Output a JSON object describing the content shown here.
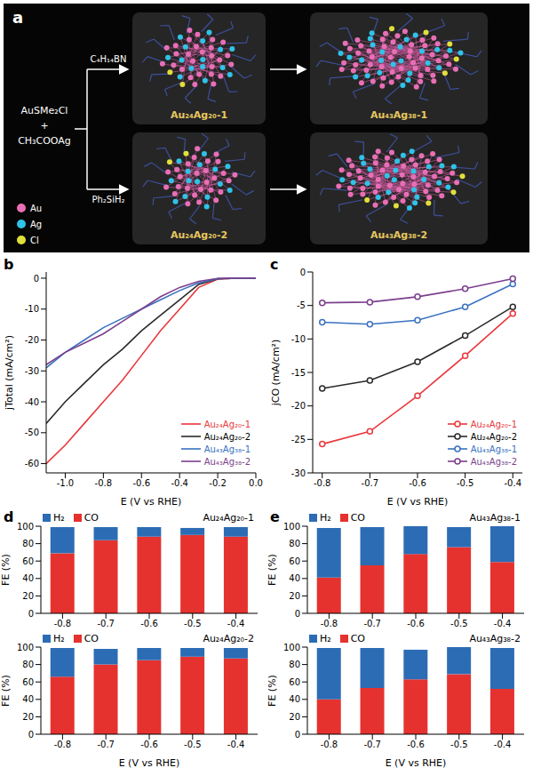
{
  "panel_a": {
    "label": "a",
    "reactants": [
      "AuSMe₂Cl",
      "+",
      "CH₃COOAg"
    ],
    "reagents": [
      "C₄H₁₄BN",
      "Ph₂SiH₂"
    ],
    "products": [
      [
        "Au₂₄Ag₂₀-1",
        "Au₄₃Ag₃₈-1"
      ],
      [
        "Au₂₄Ag₂₀-2",
        "Au₄₃Ag₃₈-2"
      ]
    ],
    "atoms": [
      {
        "label": "Au",
        "color": "#e86fb5"
      },
      {
        "label": "Ag",
        "color": "#2fc3e8"
      },
      {
        "label": "Cl",
        "color": "#e0e03a"
      }
    ]
  },
  "chart_data": [
    {
      "panel": "b",
      "type": "line",
      "x_label": "E (V vs RHE)",
      "y_label": "jTotal (mA/cm²)",
      "x": [
        -1.1,
        -1,
        -0.9,
        -0.8,
        -0.7,
        -0.6,
        -0.5,
        -0.4,
        -0.3,
        -0.2,
        -0.1,
        0
      ],
      "series": [
        {
          "name": "Au₂₄Ag₂₀-1",
          "color": "#e8383d",
          "values": [
            -60,
            -54,
            -47,
            -40,
            -33,
            -25,
            -17,
            -10,
            -3,
            -0.3,
            0,
            0
          ]
        },
        {
          "name": "Au₂₄Ag₂₀-2",
          "color": "#2b2b2b",
          "values": [
            -47,
            -40,
            -34,
            -28,
            -23,
            -17,
            -12,
            -7,
            -2,
            -0.2,
            0,
            0
          ]
        },
        {
          "name": "Au₄₃Ag₃₈-1",
          "color": "#3a72c0",
          "values": [
            -29,
            -24,
            -20,
            -16,
            -13,
            -10,
            -7,
            -4,
            -1.5,
            -0.2,
            0,
            0
          ]
        },
        {
          "name": "Au₄₃Ag₃₈-2",
          "color": "#7b3f8c",
          "values": [
            -28,
            -24,
            -21,
            -18,
            -14,
            -10,
            -6,
            -3,
            -1,
            -0.1,
            0,
            0
          ]
        }
      ],
      "xlim": [
        -1.1,
        0
      ],
      "xticks": [
        {
          "value": -1,
          "label": "-1.0"
        },
        -0.8,
        -0.6,
        -0.4,
        -0.2,
        {
          "value": 0,
          "label": "0.0"
        }
      ],
      "ylim": [
        -63,
        2
      ],
      "yticks": [
        -60,
        -50,
        -40,
        -30,
        -20,
        -10,
        0
      ],
      "legend": "lower right",
      "grid": false
    },
    {
      "panel": "c",
      "type": "line",
      "marker": "circle",
      "x_label": "E (V vs RHE)",
      "y_label": "jCO (mA/cm²)",
      "x": [
        -0.8,
        -0.7,
        -0.6,
        -0.5,
        -0.4
      ],
      "series": [
        {
          "name": "Au₂₄Ag₂₀-1",
          "color": "#e8383d",
          "values": [
            -25.7,
            -23.8,
            -18.5,
            -12.5,
            -6.2
          ]
        },
        {
          "name": "Au₂₄Ag₂₀-2",
          "color": "#2b2b2b",
          "values": [
            -17.4,
            -16.2,
            -13.4,
            -9.5,
            -5.2
          ]
        },
        {
          "name": "Au₄₃Ag₃₈-1",
          "color": "#3a72c0",
          "values": [
            -7.5,
            -7.8,
            -7.2,
            -5.2,
            -1.8
          ]
        },
        {
          "name": "Au₄₃Ag₃₈-2",
          "color": "#7b3f8c",
          "values": [
            -4.6,
            -4.5,
            -3.7,
            -2.5,
            -1
          ]
        }
      ],
      "xlim": [
        -0.82,
        -0.38
      ],
      "xticks": [
        -0.8,
        -0.7,
        -0.6,
        -0.5,
        -0.4
      ],
      "ylim": [
        -30,
        0
      ],
      "yticks": [
        -30,
        -25,
        -20,
        -15,
        -10,
        -5,
        0
      ],
      "legend": "lower right",
      "grid": false
    },
    {
      "panel": "d",
      "type": "bar",
      "stacked": true,
      "title": "Au₂₄Ag₂₀-1",
      "y_label": "FE (%)",
      "categories": [
        "-0.8",
        "-0.7",
        "-0.6",
        "-0.5",
        "-0.4"
      ],
      "series": [
        {
          "name": "CO",
          "color": "#e5322f",
          "values": [
            69,
            84,
            88,
            90,
            88
          ]
        },
        {
          "name": "H₂",
          "color": "#2c6cb5",
          "values": [
            30,
            15,
            11,
            8,
            11
          ]
        }
      ],
      "ylim": [
        0,
        100
      ],
      "yticks": [
        0,
        20,
        40,
        60,
        80,
        100
      ],
      "legend": "upper left"
    },
    {
      "type": "bar",
      "stacked": true,
      "title": "Au₂₄Ag₂₀-2",
      "y_label": "FE (%)",
      "x_label": "E (V vs RHE)",
      "categories": [
        "-0.8",
        "-0.7",
        "-0.6",
        "-0.5",
        "-0.4"
      ],
      "series": [
        {
          "name": "CO",
          "color": "#e5322f",
          "values": [
            66,
            80,
            85,
            89,
            87
          ]
        },
        {
          "name": "H₂",
          "color": "#2c6cb5",
          "values": [
            33,
            18,
            14,
            10,
            12
          ]
        }
      ],
      "ylim": [
        0,
        100
      ],
      "yticks": [
        0,
        20,
        40,
        60,
        80,
        100
      ],
      "legend": "upper left"
    },
    {
      "panel": "e",
      "type": "bar",
      "stacked": true,
      "title": "Au₄₃Ag₃₈-1",
      "y_label": "FE (%)",
      "categories": [
        "-0.8",
        "-0.7",
        "-0.6",
        "-0.5",
        "-0.4"
      ],
      "series": [
        {
          "name": "CO",
          "color": "#e5322f",
          "values": [
            41,
            55,
            68,
            76,
            59
          ]
        },
        {
          "name": "H₂",
          "color": "#2c6cb5",
          "values": [
            57,
            44,
            32,
            23,
            41
          ]
        }
      ],
      "ylim": [
        0,
        100
      ],
      "yticks": [
        0,
        20,
        40,
        60,
        80,
        100
      ],
      "legend": "upper left"
    },
    {
      "type": "bar",
      "stacked": true,
      "title": "Au₄₃Ag₃₈-2",
      "y_label": "FE (%)",
      "x_label": "E (V vs RHE)",
      "categories": [
        "-0.8",
        "-0.7",
        "-0.6",
        "-0.5",
        "-0.4"
      ],
      "series": [
        {
          "name": "CO",
          "color": "#e5322f",
          "values": [
            40,
            53,
            63,
            69,
            52
          ]
        },
        {
          "name": "H₂",
          "color": "#2c6cb5",
          "values": [
            59,
            46,
            34,
            31,
            47
          ]
        }
      ],
      "ylim": [
        0,
        100
      ],
      "yticks": [
        0,
        20,
        40,
        60,
        80,
        100
      ],
      "legend": "upper left"
    }
  ]
}
